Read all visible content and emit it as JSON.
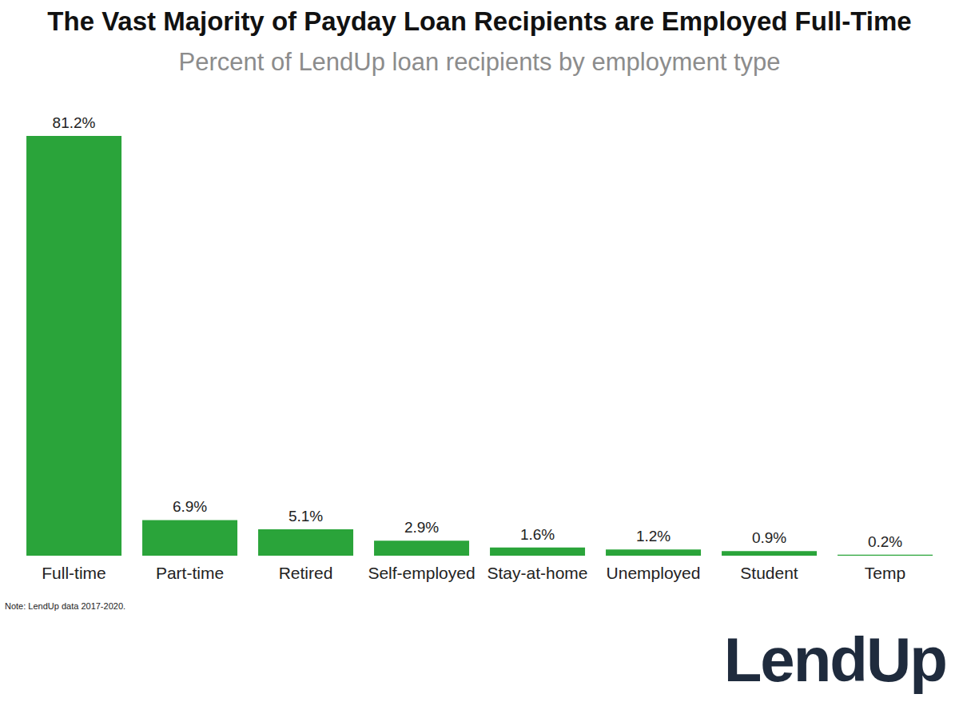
{
  "chart_data": {
    "type": "bar",
    "title": "The Vast Majority of Payday Loan Recipients are Employed Full-Time",
    "subtitle": "Percent of LendUp loan recipients by employment type",
    "categories": [
      "Full-time",
      "Part-time",
      "Retired",
      "Self-employed",
      "Stay-at-home",
      "Unemployed",
      "Student",
      "Temp"
    ],
    "values": [
      81.2,
      6.9,
      5.1,
      2.9,
      1.6,
      1.2,
      0.9,
      0.2
    ],
    "value_labels": [
      "81.2%",
      "6.9%",
      "5.1%",
      "2.9%",
      "1.6%",
      "1.2%",
      "0.9%",
      "0.2%"
    ],
    "color": "#2aa43a",
    "data_labels": true,
    "tick_labels": "x",
    "grid": false,
    "note": "Note: LendUp data 2017-2020.",
    "logo": "LendUp"
  }
}
